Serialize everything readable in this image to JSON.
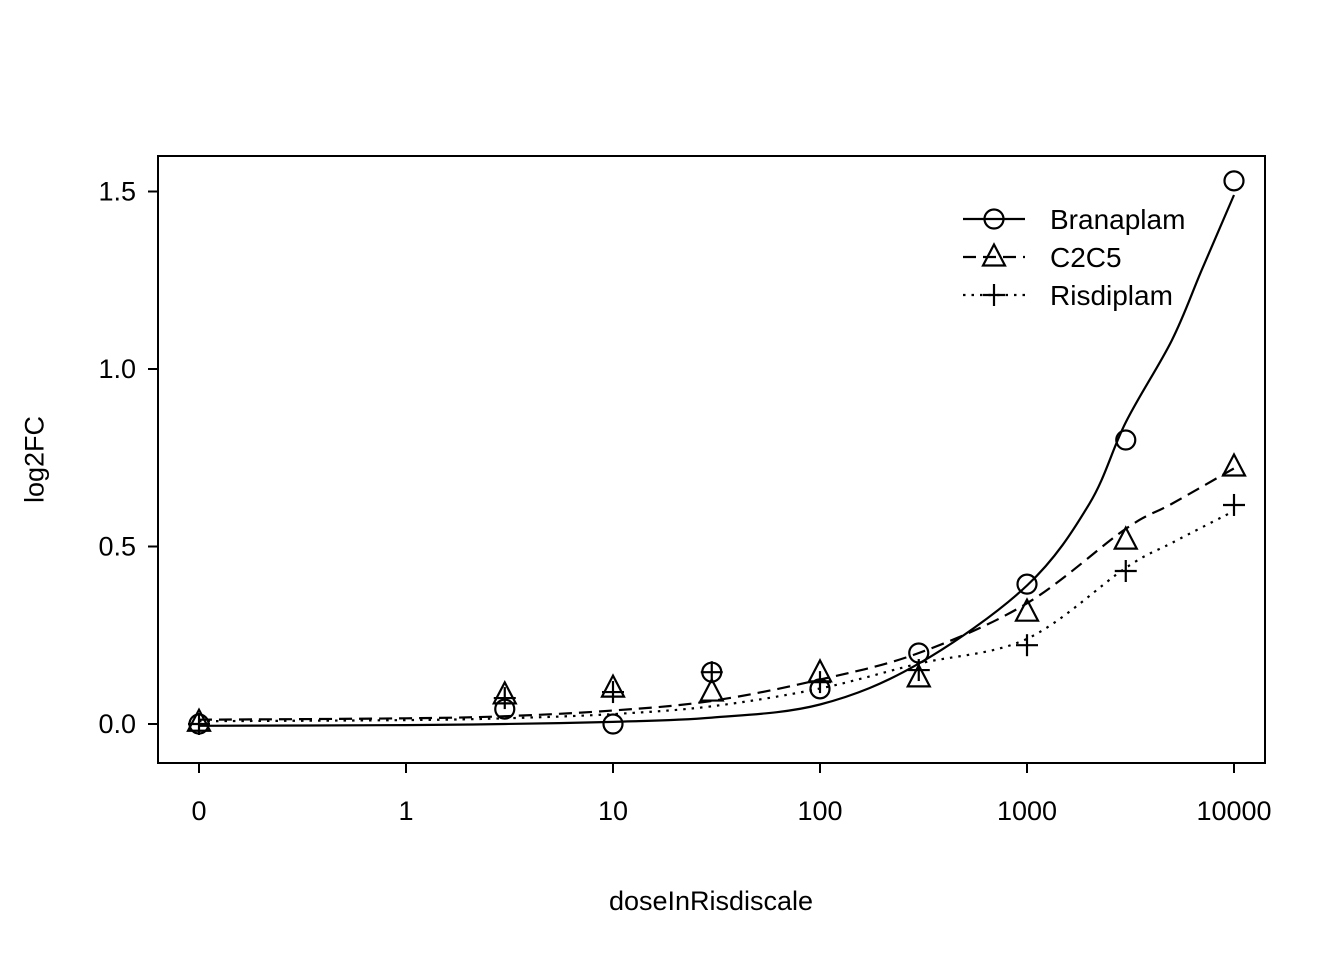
{
  "figure": {
    "background": "#ffffff",
    "ink": "#000000"
  },
  "chart_data": {
    "type": "scatter",
    "title": "",
    "xlabel": "doseInRisdiscale",
    "ylabel": "log2FC",
    "x_scale": "log10",
    "zero_dose_plotted_at": 0.1,
    "xlim_doses": [
      0,
      10000
    ],
    "ylim": [
      -0.08,
      1.57
    ],
    "grid": false,
    "x_ticks": [
      {
        "label": "0",
        "dose": 0
      },
      {
        "label": "1",
        "dose": 1
      },
      {
        "label": "10",
        "dose": 10
      },
      {
        "label": "100",
        "dose": 100
      },
      {
        "label": "1000",
        "dose": 1000
      },
      {
        "label": "10000",
        "dose": 10000
      }
    ],
    "y_ticks": [
      {
        "label": "0.0",
        "value": 0.0
      },
      {
        "label": "0.5",
        "value": 0.5
      },
      {
        "label": "1.0",
        "value": 1.0
      },
      {
        "label": "1.5",
        "value": 1.5
      }
    ],
    "legend": {
      "position": "top-right",
      "entries": [
        "Branaplam",
        "C2C5",
        "Risdiplam"
      ]
    },
    "series": [
      {
        "name": "Branaplam",
        "marker": "circle",
        "line": "solid",
        "points": [
          [
            0,
            0.0
          ],
          [
            3,
            0.042
          ],
          [
            10,
            0.0
          ],
          [
            30,
            0.146
          ],
          [
            100,
            0.099
          ],
          [
            300,
            0.2
          ],
          [
            1000,
            0.394
          ],
          [
            3000,
            0.8
          ],
          [
            10000,
            1.53
          ]
        ],
        "fit_curve": [
          [
            0,
            -0.005
          ],
          [
            1,
            -0.003
          ],
          [
            3,
            0.0
          ],
          [
            10,
            0.006
          ],
          [
            30,
            0.018
          ],
          [
            100,
            0.055
          ],
          [
            300,
            0.17
          ],
          [
            1000,
            0.39
          ],
          [
            2000,
            0.62
          ],
          [
            3000,
            0.85
          ],
          [
            5000,
            1.08
          ],
          [
            7000,
            1.28
          ],
          [
            10000,
            1.49
          ]
        ]
      },
      {
        "name": "C2C5",
        "marker": "triangle",
        "line": "dashed",
        "points": [
          [
            0,
            0.005
          ],
          [
            3,
            0.082
          ],
          [
            10,
            0.101
          ],
          [
            30,
            0.09
          ],
          [
            100,
            0.144
          ],
          [
            300,
            0.13
          ],
          [
            1000,
            0.315
          ],
          [
            3000,
            0.518
          ],
          [
            10000,
            0.724
          ]
        ],
        "fit_curve": [
          [
            0,
            0.012
          ],
          [
            1,
            0.016
          ],
          [
            3,
            0.022
          ],
          [
            10,
            0.038
          ],
          [
            30,
            0.065
          ],
          [
            100,
            0.125
          ],
          [
            300,
            0.2
          ],
          [
            1000,
            0.34
          ],
          [
            3000,
            0.55
          ],
          [
            5000,
            0.62
          ],
          [
            10000,
            0.72
          ]
        ]
      },
      {
        "name": "Risdiplam",
        "marker": "plus",
        "line": "dotted",
        "points": [
          [
            0,
            0.0
          ],
          [
            3,
            0.073
          ],
          [
            10,
            0.09
          ],
          [
            30,
            0.146
          ],
          [
            100,
            0.118
          ],
          [
            300,
            0.152
          ],
          [
            1000,
            0.222
          ],
          [
            3000,
            0.431
          ],
          [
            10000,
            0.617
          ]
        ],
        "fit_curve": [
          [
            0,
            0.008
          ],
          [
            1,
            0.011
          ],
          [
            3,
            0.016
          ],
          [
            10,
            0.028
          ],
          [
            30,
            0.05
          ],
          [
            100,
            0.1
          ],
          [
            300,
            0.17
          ],
          [
            1000,
            0.24
          ],
          [
            3000,
            0.44
          ],
          [
            5000,
            0.51
          ],
          [
            10000,
            0.6
          ]
        ]
      }
    ]
  }
}
